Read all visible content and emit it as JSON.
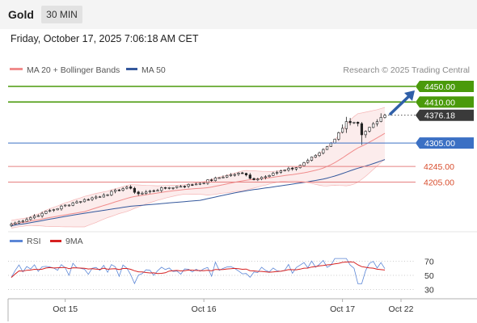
{
  "header": {
    "asset": "Gold",
    "interval": "30 MIN",
    "timestamp": "Friday, October 17, 2025 7:06:18 AM CET"
  },
  "colors": {
    "bollinger": "#f08c8c",
    "ma50": "#34589c",
    "target": "#4a9a0b",
    "pivot": "#3b70c4",
    "support": "#e58080",
    "last_price": "#3a3a3a",
    "rsi": "#5b86d6",
    "rsi_ma": "#d62020",
    "arrow": "#2f5fa8"
  },
  "credit": "Research © 2025 Trading Central",
  "price_panel": {
    "legend": [
      {
        "label": "MA 20 + Bollinger Bands",
        "color": "#f08c8c"
      },
      {
        "label": "MA 50",
        "color": "#34589c"
      }
    ],
    "levels": [
      {
        "value": 4450.0,
        "label": "4450.00",
        "kind": "target"
      },
      {
        "value": 4410.0,
        "label": "4410.00",
        "kind": "target"
      },
      {
        "value": 4376.18,
        "label": "4376.18",
        "kind": "last"
      },
      {
        "value": 4305.0,
        "label": "4305.00",
        "kind": "pivot"
      },
      {
        "value": 4245.0,
        "label": "4245.00",
        "kind": "support"
      },
      {
        "value": 4205.0,
        "label": "4205.00",
        "kind": "support"
      }
    ]
  },
  "rsi_panel": {
    "legend": [
      {
        "label": "RSI",
        "color": "#5b86d6"
      },
      {
        "label": "9MA",
        "color": "#d62020"
      }
    ],
    "ticks": [
      {
        "value": 70,
        "label": "70"
      },
      {
        "value": 50,
        "label": "50"
      },
      {
        "value": 30,
        "label": "30"
      }
    ]
  },
  "x_axis": {
    "ticks": [
      {
        "index": 14,
        "label": "Oct 15"
      },
      {
        "index": 50,
        "label": "Oct 16"
      },
      {
        "index": 86,
        "label": "Oct 17"
      },
      {
        "index": 98,
        "label": "Oct 22"
      }
    ]
  },
  "chart_data": [
    {
      "type": "candlestick",
      "title": "Gold",
      "interval": "30 MIN",
      "ylim": [
        4080,
        4470
      ],
      "series_names": [
        "MA 20 + Bollinger Bands",
        "MA 50"
      ],
      "close_anchors": [
        {
          "i": 0,
          "close": 4097
        },
        {
          "i": 8,
          "close": 4125
        },
        {
          "i": 16,
          "close": 4152
        },
        {
          "i": 24,
          "close": 4172
        },
        {
          "i": 30,
          "close": 4192
        },
        {
          "i": 33,
          "close": 4175
        },
        {
          "i": 40,
          "close": 4190
        },
        {
          "i": 48,
          "close": 4200
        },
        {
          "i": 56,
          "close": 4222
        },
        {
          "i": 60,
          "close": 4228
        },
        {
          "i": 63,
          "close": 4211
        },
        {
          "i": 68,
          "close": 4228
        },
        {
          "i": 74,
          "close": 4242
        },
        {
          "i": 80,
          "close": 4280
        },
        {
          "i": 84,
          "close": 4315
        },
        {
          "i": 87,
          "close": 4360
        },
        {
          "i": 90,
          "close": 4355
        },
        {
          "i": 91,
          "close": 4326
        },
        {
          "i": 92,
          "close": 4335
        },
        {
          "i": 95,
          "close": 4360
        },
        {
          "i": 97,
          "close": 4376.18
        }
      ]
    },
    {
      "type": "line",
      "title": "RSI",
      "ylim": [
        20,
        80
      ],
      "series_names": [
        "RSI",
        "9MA"
      ]
    }
  ]
}
